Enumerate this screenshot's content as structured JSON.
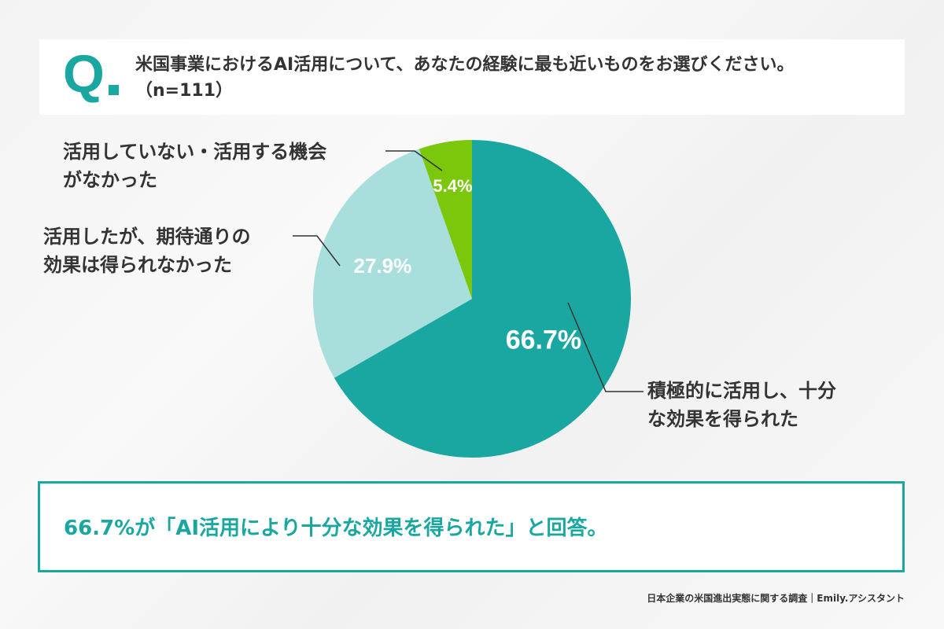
{
  "question": {
    "mark": "Q",
    "line1": "米国事業におけるAI活用について、あなたの経験に最も近いものをお選びください。",
    "line2": "（n=111）"
  },
  "chart_data": {
    "type": "pie",
    "slices": [
      {
        "label": "積極的に活用し、十分な効果を得られた",
        "value": 66.7,
        "value_label": "66.7%",
        "color": "#1aa7a1"
      },
      {
        "label": "活用したが、期待通りの効果は得られなかった",
        "value": 27.9,
        "value_label": "27.9%",
        "color": "#a8dedb"
      },
      {
        "label": "活用していない・活用する機会がなかった",
        "value": 5.4,
        "value_label": "5.4%",
        "color": "#7ac70c"
      }
    ]
  },
  "labels": {
    "a_line1": "積極的に活用し、十分",
    "a_line2": "な効果を得られた",
    "b_line1": "活用したが、期待通りの",
    "b_line2": "効果は得られなかった",
    "c_line1": "活用していない・活用する機会",
    "c_line2": "がなかった"
  },
  "summary": "66.7%が「AI活用により十分な効果を得られた」と回答。",
  "source": "日本企業の米国進出実態に関する調査｜Emily.アシスタント",
  "colors": {
    "accent": "#1aa7a1",
    "text": "#333333"
  }
}
